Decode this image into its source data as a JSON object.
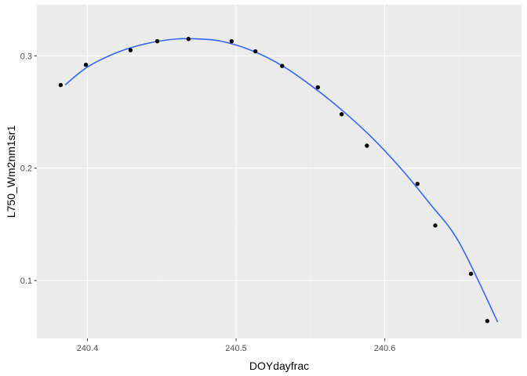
{
  "chart_data": {
    "type": "scatter",
    "xlabel": "DOYdayfrac",
    "ylabel": "L750_Wm2nm1sr1",
    "xlim": [
      240.366,
      240.692
    ],
    "ylim": [
      0.0485,
      0.3455
    ],
    "x_ticks": [
      240.4,
      240.5,
      240.6
    ],
    "x_tick_labels": [
      "240.4",
      "240.5",
      "240.6"
    ],
    "y_ticks": [
      0.1,
      0.2,
      0.3
    ],
    "y_tick_labels": [
      "0.1",
      "0.2",
      "0.3"
    ],
    "grid": true,
    "points": {
      "x": [
        240.382,
        240.399,
        240.429,
        240.447,
        240.468,
        240.497,
        240.513,
        240.531,
        240.555,
        240.571,
        240.588,
        240.622,
        240.634,
        240.658,
        240.669
      ],
      "y": [
        0.274,
        0.292,
        0.305,
        0.313,
        0.315,
        0.313,
        0.304,
        0.291,
        0.272,
        0.248,
        0.22,
        0.186,
        0.149,
        0.106,
        0.064
      ]
    },
    "smooth_curve": {
      "x": [
        240.385,
        240.4,
        240.42,
        240.44,
        240.46,
        240.475,
        240.49,
        240.51,
        240.53,
        240.55,
        240.57,
        240.59,
        240.61,
        240.63,
        240.65,
        240.676
      ],
      "y": [
        0.274,
        0.29,
        0.303,
        0.311,
        0.315,
        0.315,
        0.313,
        0.305,
        0.292,
        0.274,
        0.253,
        0.229,
        0.201,
        0.169,
        0.134,
        0.063
      ]
    },
    "colors": {
      "panel": "#ebebeb",
      "grid_major": "#ffffff",
      "grid_minor": "#f2f2f2",
      "points": "#000000",
      "curve": "#3366ff"
    }
  }
}
